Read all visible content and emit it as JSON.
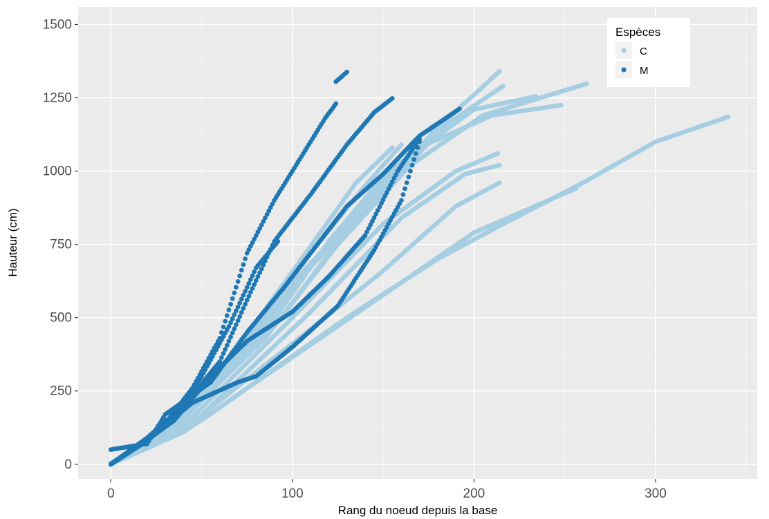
{
  "chart_data": {
    "type": "scatter",
    "title": "",
    "xlabel": "Rang du noeud depuis la base",
    "ylabel": "Hauteur (cm)",
    "xlim": [
      -18,
      356
    ],
    "ylim": [
      -50,
      1560
    ],
    "xticks": [
      0,
      100,
      200,
      300
    ],
    "yticks": [
      0,
      250,
      500,
      750,
      1000,
      1250,
      1500
    ],
    "x_tick_labels": [
      "0",
      "100",
      "200",
      "300"
    ],
    "y_tick_labels": [
      "0",
      "250",
      "500",
      "750",
      "1000",
      "1250",
      "1500"
    ],
    "grid": true,
    "legend": {
      "title": "Espèces",
      "position": "top-right"
    },
    "series": [
      {
        "name": "C",
        "color": "#a6cee3",
        "curves": [
          [
            [
              0,
              0
            ],
            [
              20,
              70
            ],
            [
              60,
              300
            ],
            [
              100,
              620
            ],
            [
              140,
              880
            ],
            [
              180,
              1150
            ],
            [
              200,
              1260
            ],
            [
              214,
              1340
            ]
          ],
          [
            [
              0,
              0
            ],
            [
              25,
              90
            ],
            [
              65,
              330
            ],
            [
              105,
              640
            ],
            [
              145,
              900
            ],
            [
              185,
              1160
            ],
            [
              216,
              1290
            ]
          ],
          [
            [
              0,
              5
            ],
            [
              30,
              110
            ],
            [
              80,
              420
            ],
            [
              120,
              760
            ],
            [
              160,
              1030
            ],
            [
              200,
              1210
            ],
            [
              234,
              1255
            ]
          ],
          [
            [
              0,
              0
            ],
            [
              35,
              120
            ],
            [
              90,
              470
            ],
            [
              130,
              800
            ],
            [
              170,
              1080
            ],
            [
              210,
              1190
            ],
            [
              248,
              1225
            ]
          ],
          [
            [
              0,
              0
            ],
            [
              30,
              100
            ],
            [
              85,
              430
            ],
            [
              125,
              750
            ],
            [
              165,
              1020
            ],
            [
              205,
              1190
            ],
            [
              262,
              1298
            ]
          ],
          [
            [
              0,
              0
            ],
            [
              40,
              130
            ],
            [
              100,
              500
            ],
            [
              150,
              820
            ],
            [
              190,
              1000
            ],
            [
              213,
              1060
            ]
          ],
          [
            [
              0,
              0
            ],
            [
              45,
              140
            ],
            [
              110,
              520
            ],
            [
              160,
              840
            ],
            [
              195,
              990
            ],
            [
              214,
              1020
            ]
          ],
          [
            [
              0,
              0
            ],
            [
              40,
              120
            ],
            [
              110,
              460
            ],
            [
              150,
              660
            ],
            [
              190,
              880
            ],
            [
              214,
              960
            ]
          ],
          [
            [
              0,
              0
            ],
            [
              40,
              110
            ],
            [
              120,
              450
            ],
            [
              160,
              620
            ],
            [
              200,
              790
            ],
            [
              256,
              940
            ]
          ],
          [
            [
              0,
              0
            ],
            [
              50,
              150
            ],
            [
              130,
              500
            ],
            [
              180,
              700
            ],
            [
              210,
              800
            ],
            [
              260,
              960
            ],
            [
              300,
              1100
            ],
            [
              340,
              1185
            ]
          ],
          [
            [
              0,
              0
            ],
            [
              30,
              110
            ],
            [
              75,
              430
            ],
            [
              110,
              720
            ],
            [
              140,
              950
            ],
            [
              160,
              1090
            ]
          ],
          [
            [
              0,
              0
            ],
            [
              28,
              100
            ],
            [
              70,
              400
            ],
            [
              105,
              700
            ],
            [
              135,
              960
            ],
            [
              155,
              1080
            ]
          ],
          [
            [
              0,
              0
            ],
            [
              35,
              120
            ],
            [
              85,
              450
            ],
            [
              120,
              760
            ],
            [
              150,
              980
            ],
            [
              175,
              1100
            ]
          ]
        ]
      },
      {
        "name": "M",
        "color": "#1f78b4",
        "curves": [
          [
            [
              0,
              0
            ],
            [
              15,
              60
            ],
            [
              30,
              140
            ],
            [
              45,
              260
            ],
            [
              60,
              430
            ],
            [
              75,
              720
            ],
            [
              90,
              900
            ],
            [
              105,
              1050
            ],
            [
              118,
              1180
            ],
            [
              124,
              1230
            ]
          ],
          [
            [
              124,
              1305
            ],
            [
              130,
              1338
            ]
          ],
          [
            [
              0,
              0
            ],
            [
              20,
              80
            ],
            [
              35,
              170
            ],
            [
              50,
              300
            ],
            [
              65,
              470
            ],
            [
              80,
              670
            ],
            [
              92,
              760
            ]
          ],
          [
            [
              0,
              0
            ],
            [
              20,
              90
            ],
            [
              40,
              200
            ],
            [
              60,
              350
            ],
            [
              75,
              560
            ],
            [
              90,
              760
            ],
            [
              110,
              920
            ],
            [
              130,
              1090
            ],
            [
              145,
              1200
            ],
            [
              155,
              1248
            ]
          ],
          [
            [
              0,
              50
            ],
            [
              20,
              70
            ],
            [
              30,
              170
            ],
            [
              55,
              280
            ],
            [
              75,
              450
            ],
            [
              95,
              600
            ],
            [
              115,
              760
            ],
            [
              130,
              880
            ],
            [
              150,
              990
            ],
            [
              170,
              1120
            ],
            [
              192,
              1212
            ]
          ],
          [
            [
              0,
              0
            ],
            [
              15,
              60
            ],
            [
              35,
              150
            ],
            [
              55,
              300
            ],
            [
              75,
              420
            ],
            [
              100,
              520
            ],
            [
              120,
              640
            ],
            [
              140,
              780
            ],
            [
              158,
              1000
            ],
            [
              170,
              1110
            ]
          ],
          [
            [
              0,
              0
            ],
            [
              25,
              110
            ],
            [
              45,
              210
            ],
            [
              70,
              280
            ],
            [
              80,
              300
            ],
            [
              100,
              400
            ],
            [
              125,
              540
            ],
            [
              145,
              730
            ],
            [
              160,
              900
            ],
            [
              170,
              1100
            ]
          ]
        ]
      }
    ]
  }
}
